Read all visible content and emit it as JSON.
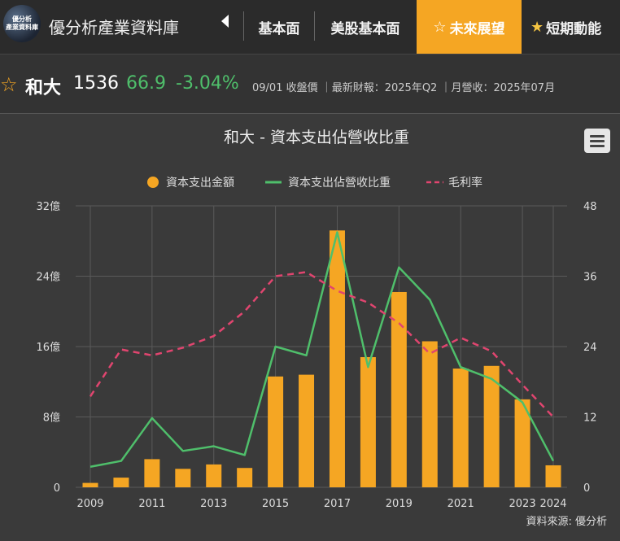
{
  "header": {
    "logo_text": "優分析\n產業資料庫",
    "brand": "優分析產業資料庫",
    "tabs": [
      {
        "label": "基本面",
        "active": false,
        "star": false
      },
      {
        "label": "美股基本面",
        "active": false,
        "star": false
      },
      {
        "label": "未來展望",
        "active": true,
        "star": true
      },
      {
        "label": "短期動能",
        "active": false,
        "star": true
      }
    ]
  },
  "stock": {
    "name": "和大",
    "code": "1536",
    "price": "66.9",
    "change": "-3.04%",
    "meta": "09/01 收盤價 ｜最新財報：2025年Q2 ｜月營收：2025年07月"
  },
  "colors": {
    "bar": "#f5a623",
    "ratio_line": "#4fbf6b",
    "margin_line": "#e0456f",
    "accent": "#f5a623"
  },
  "chart_data": {
    "type": "bar",
    "title": "和大 - 資本支出佔營收比重",
    "legend": [
      "資本支出金額",
      "資本支出佔營收比重",
      "毛利率"
    ],
    "legend_position": "top",
    "source": "資料來源: 優分析",
    "x": [
      2009,
      2010,
      2011,
      2012,
      2013,
      2014,
      2015,
      2016,
      2017,
      2018,
      2019,
      2020,
      2021,
      2022,
      2023,
      2024
    ],
    "x_tick_labels": [
      "2009",
      "2011",
      "2013",
      "2015",
      "2017",
      "2019",
      "2021",
      "2023",
      "2024"
    ],
    "y_left": {
      "ticks": [
        0,
        8,
        16,
        24,
        32
      ],
      "tick_labels": [
        "0",
        "8億",
        "16億",
        "24億",
        "32億"
      ],
      "ylim": [
        0,
        32
      ]
    },
    "y_right": {
      "ticks": [
        0,
        12,
        24,
        36,
        48
      ],
      "tick_labels": [
        "0",
        "12",
        "24",
        "36",
        "48"
      ],
      "ylim": [
        0,
        48
      ]
    },
    "grid": true,
    "series": [
      {
        "name": "資本支出金額",
        "type": "bar",
        "axis": "left",
        "values": [
          0.5,
          1.1,
          3.2,
          2.1,
          2.6,
          2.2,
          12.6,
          12.8,
          29.2,
          14.8,
          22.2,
          16.6,
          13.5,
          13.8,
          10.0,
          2.5
        ]
      },
      {
        "name": "資本支出佔營收比重",
        "type": "line",
        "axis": "right",
        "values": [
          3.5,
          4.5,
          11.8,
          6.2,
          7.0,
          5.5,
          24.0,
          22.5,
          43.5,
          20.5,
          37.5,
          32.0,
          20.5,
          18.5,
          14.5,
          4.5
        ]
      },
      {
        "name": "毛利率",
        "type": "line",
        "dash": true,
        "axis": "right",
        "values": [
          15.5,
          23.5,
          22.5,
          23.8,
          25.8,
          30.0,
          36.0,
          36.7,
          33.5,
          31.5,
          28.0,
          22.8,
          25.5,
          23.2,
          17.5,
          12.0
        ]
      }
    ]
  }
}
